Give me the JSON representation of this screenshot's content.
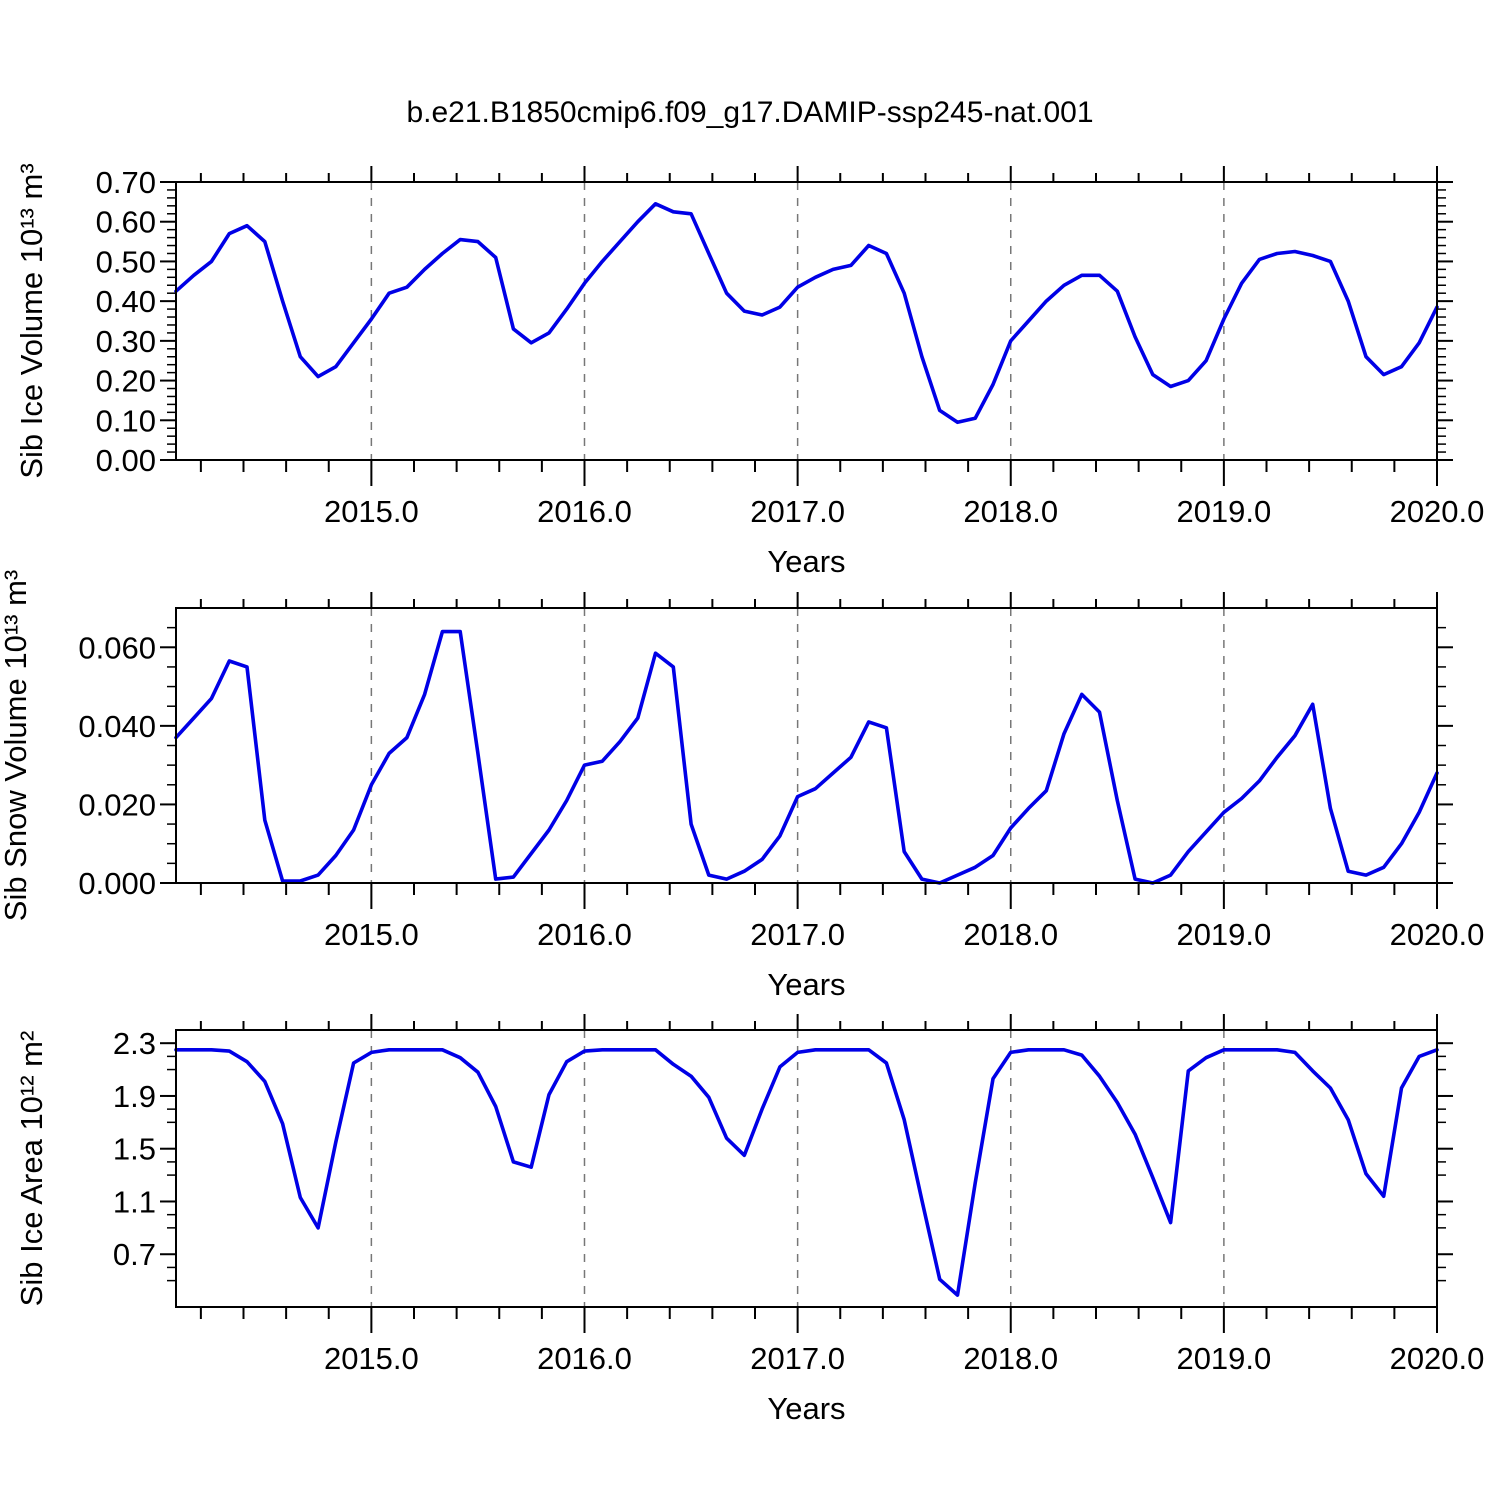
{
  "title": "b.e21.B1850cmip6.f09_g17.DAMIP-ssp245-nat.001",
  "colors": {
    "line": "#0000e6",
    "grid": "#777777",
    "axis": "#000000"
  },
  "x_axis": {
    "label": "Years",
    "tick_labels": [
      "2015.0",
      "2016.0",
      "2017.0",
      "2018.0",
      "2019.0",
      "2020.0"
    ],
    "major_ticks": [
      2015,
      2016,
      2017,
      2018,
      2019,
      2020
    ],
    "gridline_years": [
      2015,
      2016,
      2017,
      2018,
      2019
    ],
    "minor_step": 0.2,
    "start": 2014.0833,
    "end": 2020.0
  },
  "chart_data": [
    {
      "type": "line",
      "name": "sib-ice-volume",
      "ylabel": "Sib Ice Volume 10¹³ m³",
      "xlabel": "Years",
      "ylim": [
        0.0,
        0.7
      ],
      "ytick_major": 0.1,
      "ytick_minor": 0.02,
      "ylabel_decimals": 2,
      "x_start": 2014.0833,
      "x_step": 0.0833333,
      "values": [
        0.425,
        0.465,
        0.5,
        0.57,
        0.59,
        0.55,
        0.4,
        0.26,
        0.21,
        0.235,
        0.295,
        0.355,
        0.42,
        0.435,
        0.48,
        0.52,
        0.555,
        0.55,
        0.51,
        0.33,
        0.295,
        0.32,
        0.38,
        0.445,
        0.5,
        0.55,
        0.6,
        0.645,
        0.625,
        0.62,
        0.52,
        0.42,
        0.375,
        0.365,
        0.385,
        0.435,
        0.46,
        0.48,
        0.49,
        0.54,
        0.52,
        0.42,
        0.26,
        0.125,
        0.095,
        0.105,
        0.19,
        0.3,
        0.35,
        0.4,
        0.44,
        0.465,
        0.465,
        0.425,
        0.31,
        0.215,
        0.185,
        0.2,
        0.25,
        0.355,
        0.445,
        0.505,
        0.52,
        0.525,
        0.515,
        0.5,
        0.4,
        0.26,
        0.215,
        0.235,
        0.295,
        0.385
      ]
    },
    {
      "type": "line",
      "name": "sib-snow-volume",
      "ylabel": "Sib Snow Volume 10¹³ m³",
      "xlabel": "Years",
      "ylim": [
        0.0,
        0.07
      ],
      "ytick_major": 0.02,
      "ytick_minor": 0.005,
      "ylabel_decimals": 3,
      "x_start": 2014.0833,
      "x_step": 0.0833333,
      "values": [
        0.037,
        0.042,
        0.047,
        0.0565,
        0.055,
        0.016,
        0.0005,
        0.0005,
        0.002,
        0.007,
        0.0135,
        0.025,
        0.033,
        0.037,
        0.048,
        0.064,
        0.064,
        0.033,
        0.001,
        0.0015,
        0.0075,
        0.0135,
        0.021,
        0.03,
        0.031,
        0.036,
        0.042,
        0.0585,
        0.055,
        0.015,
        0.002,
        0.001,
        0.003,
        0.006,
        0.012,
        0.022,
        0.024,
        0.028,
        0.032,
        0.041,
        0.0395,
        0.008,
        0.001,
        0.0,
        0.002,
        0.004,
        0.007,
        0.014,
        0.019,
        0.0235,
        0.038,
        0.048,
        0.0435,
        0.021,
        0.001,
        0.0,
        0.002,
        0.008,
        0.013,
        0.018,
        0.0215,
        0.026,
        0.032,
        0.0375,
        0.0455,
        0.019,
        0.003,
        0.002,
        0.004,
        0.01,
        0.018,
        0.028
      ]
    },
    {
      "type": "line",
      "name": "sib-ice-area",
      "ylabel": "Sib Ice Area 10¹² m²",
      "xlabel": "Years",
      "ylim": [
        0.3,
        2.4
      ],
      "ytick_major": 0.4,
      "ytick_minor": 0.1,
      "ylabel_decimals": 1,
      "x_start": 2014.0833,
      "x_step": 0.0833333,
      "values": [
        2.25,
        2.25,
        2.25,
        2.24,
        2.16,
        2.01,
        1.69,
        1.13,
        0.9,
        1.55,
        2.15,
        2.23,
        2.25,
        2.25,
        2.25,
        2.25,
        2.19,
        2.08,
        1.82,
        1.4,
        1.36,
        1.91,
        2.16,
        2.24,
        2.25,
        2.25,
        2.25,
        2.25,
        2.14,
        2.05,
        1.89,
        1.58,
        1.45,
        1.8,
        2.12,
        2.23,
        2.25,
        2.25,
        2.25,
        2.25,
        2.15,
        1.72,
        1.11,
        0.51,
        0.39,
        1.24,
        2.03,
        2.23,
        2.25,
        2.25,
        2.25,
        2.21,
        2.05,
        1.85,
        1.61,
        1.28,
        0.94,
        2.09,
        2.19,
        2.25,
        2.25,
        2.25,
        2.25,
        2.23,
        2.09,
        1.96,
        1.72,
        1.31,
        1.14,
        1.96,
        2.2,
        2.25
      ]
    }
  ]
}
